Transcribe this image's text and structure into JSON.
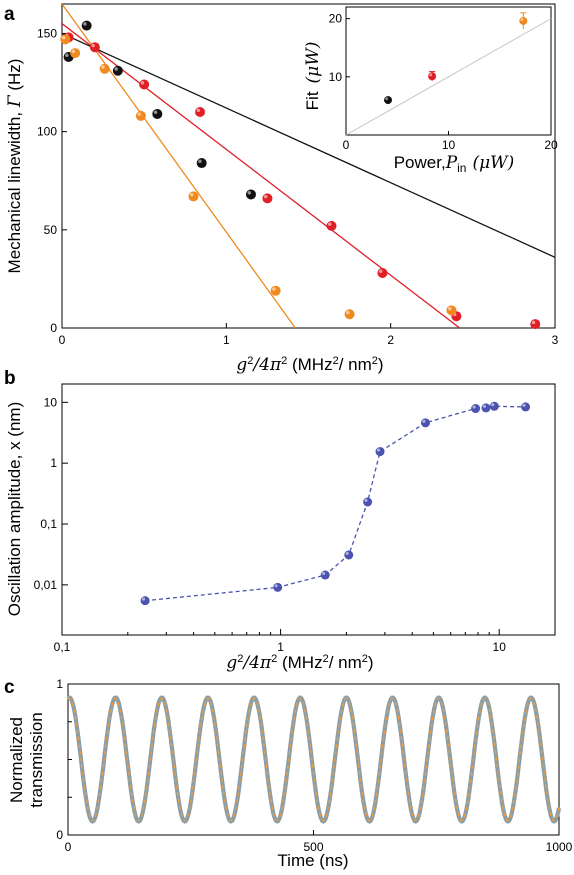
{
  "colors": {
    "black_series": "#111111",
    "red_series": "#e01f26",
    "orange_series": "#f08a1e",
    "blue_series": "#4a54b0",
    "gray_trace": "#8a9ea8",
    "orange_trace": "#ef9a3c",
    "inset_line": "#c8c8c8"
  },
  "chart_data": [
    {
      "panel": "a",
      "type": "scatter",
      "xlabel": "g²/4π² (MHz²/ nm²)",
      "ylabel": "Mechanical linewidth, Γ (Hz)",
      "xlim": [
        0,
        3
      ],
      "ylim": [
        0,
        165
      ],
      "x_ticks": [
        "0",
        "1",
        "2",
        "3"
      ],
      "y_ticks": [
        "0",
        "50",
        "100",
        "150"
      ],
      "series": [
        {
          "color": "black",
          "points": [
            [
              0.04,
              138
            ],
            [
              0.15,
              154
            ],
            [
              0.34,
              131
            ],
            [
              0.58,
              109
            ],
            [
              0.85,
              84
            ],
            [
              1.15,
              68
            ]
          ],
          "fit": [
            [
              0,
              150
            ],
            [
              3,
              36
            ]
          ]
        },
        {
          "color": "red",
          "points": [
            [
              0.04,
              148
            ],
            [
              0.2,
              143
            ],
            [
              0.5,
              124
            ],
            [
              0.84,
              110
            ],
            [
              1.25,
              66
            ],
            [
              1.64,
              52
            ],
            [
              1.95,
              28
            ],
            [
              2.4,
              6
            ],
            [
              2.88,
              2
            ]
          ],
          "fit": [
            [
              0,
              155
            ],
            [
              2.42,
              0
            ]
          ]
        },
        {
          "color": "orange",
          "points": [
            [
              0.02,
              147
            ],
            [
              0.08,
              140
            ],
            [
              0.26,
              132
            ],
            [
              0.48,
              108
            ],
            [
              0.8,
              67
            ],
            [
              1.3,
              19
            ],
            [
              1.75,
              7
            ],
            [
              2.37,
              9
            ]
          ],
          "fit": [
            [
              0,
              165
            ],
            [
              1.42,
              0
            ]
          ]
        }
      ]
    },
    {
      "panel": "a-inset",
      "type": "scatter",
      "xlabel_text": "Power,",
      "xlabel_math": "P",
      "xlabel_sub": "in",
      "xlabel_unit": "(μW)",
      "ylabel_text": "Fit",
      "ylabel_unit": "(μW)",
      "xlim": [
        0,
        20
      ],
      "ylim": [
        0,
        22
      ],
      "x_ticks": [
        "0",
        "10",
        "20"
      ],
      "y_ticks": [
        "10",
        "20"
      ],
      "points": [
        {
          "x": 4.1,
          "y": 6.0,
          "color": "black",
          "err": 0
        },
        {
          "x": 8.4,
          "y": 10.1,
          "color": "red",
          "err": 0.8
        },
        {
          "x": 17.3,
          "y": 19.6,
          "color": "orange",
          "err": 1.4
        }
      ],
      "line": [
        [
          0,
          0
        ],
        [
          20,
          20
        ]
      ]
    },
    {
      "panel": "b",
      "type": "line",
      "xlabel": "g²/4π² (MHz²/ nm²)",
      "ylabel": "Oscillation amplitude, x (nm)",
      "x_scale": "log",
      "y_scale": "log",
      "xlim": [
        0.1,
        18
      ],
      "ylim": [
        0.0015,
        20
      ],
      "x_ticks": [
        {
          "v": 0.1,
          "label": "0,1"
        },
        {
          "v": 1,
          "label": "1"
        },
        {
          "v": 10,
          "label": "10"
        }
      ],
      "y_ticks": [
        {
          "v": 0.01,
          "label": "0,01"
        },
        {
          "v": 0.1,
          "label": "0,1"
        },
        {
          "v": 1,
          "label": "1"
        },
        {
          "v": 10,
          "label": "10"
        }
      ],
      "points": [
        [
          0.24,
          0.0055
        ],
        [
          0.97,
          0.0091
        ],
        [
          1.6,
          0.0145
        ],
        [
          2.05,
          0.031
        ],
        [
          2.5,
          0.23
        ],
        [
          2.85,
          1.55
        ],
        [
          4.6,
          4.6
        ],
        [
          7.8,
          7.9
        ],
        [
          8.7,
          8.1
        ],
        [
          9.5,
          8.6
        ],
        [
          13.2,
          8.4
        ]
      ]
    },
    {
      "panel": "c",
      "type": "line",
      "xlabel": "Time (ns)",
      "ylabel_line1": "Normalized",
      "ylabel_line2": "transmission",
      "xlim": [
        0,
        1000
      ],
      "ylim": [
        0,
        1
      ],
      "x_ticks": [
        "0",
        "500",
        "1000"
      ],
      "y_ticks": [
        "0",
        "1"
      ],
      "oscillation": {
        "period_ns": 94,
        "phase_ns": 3,
        "min": 0.09,
        "max": 0.91,
        "cycles": 10.6
      }
    }
  ]
}
